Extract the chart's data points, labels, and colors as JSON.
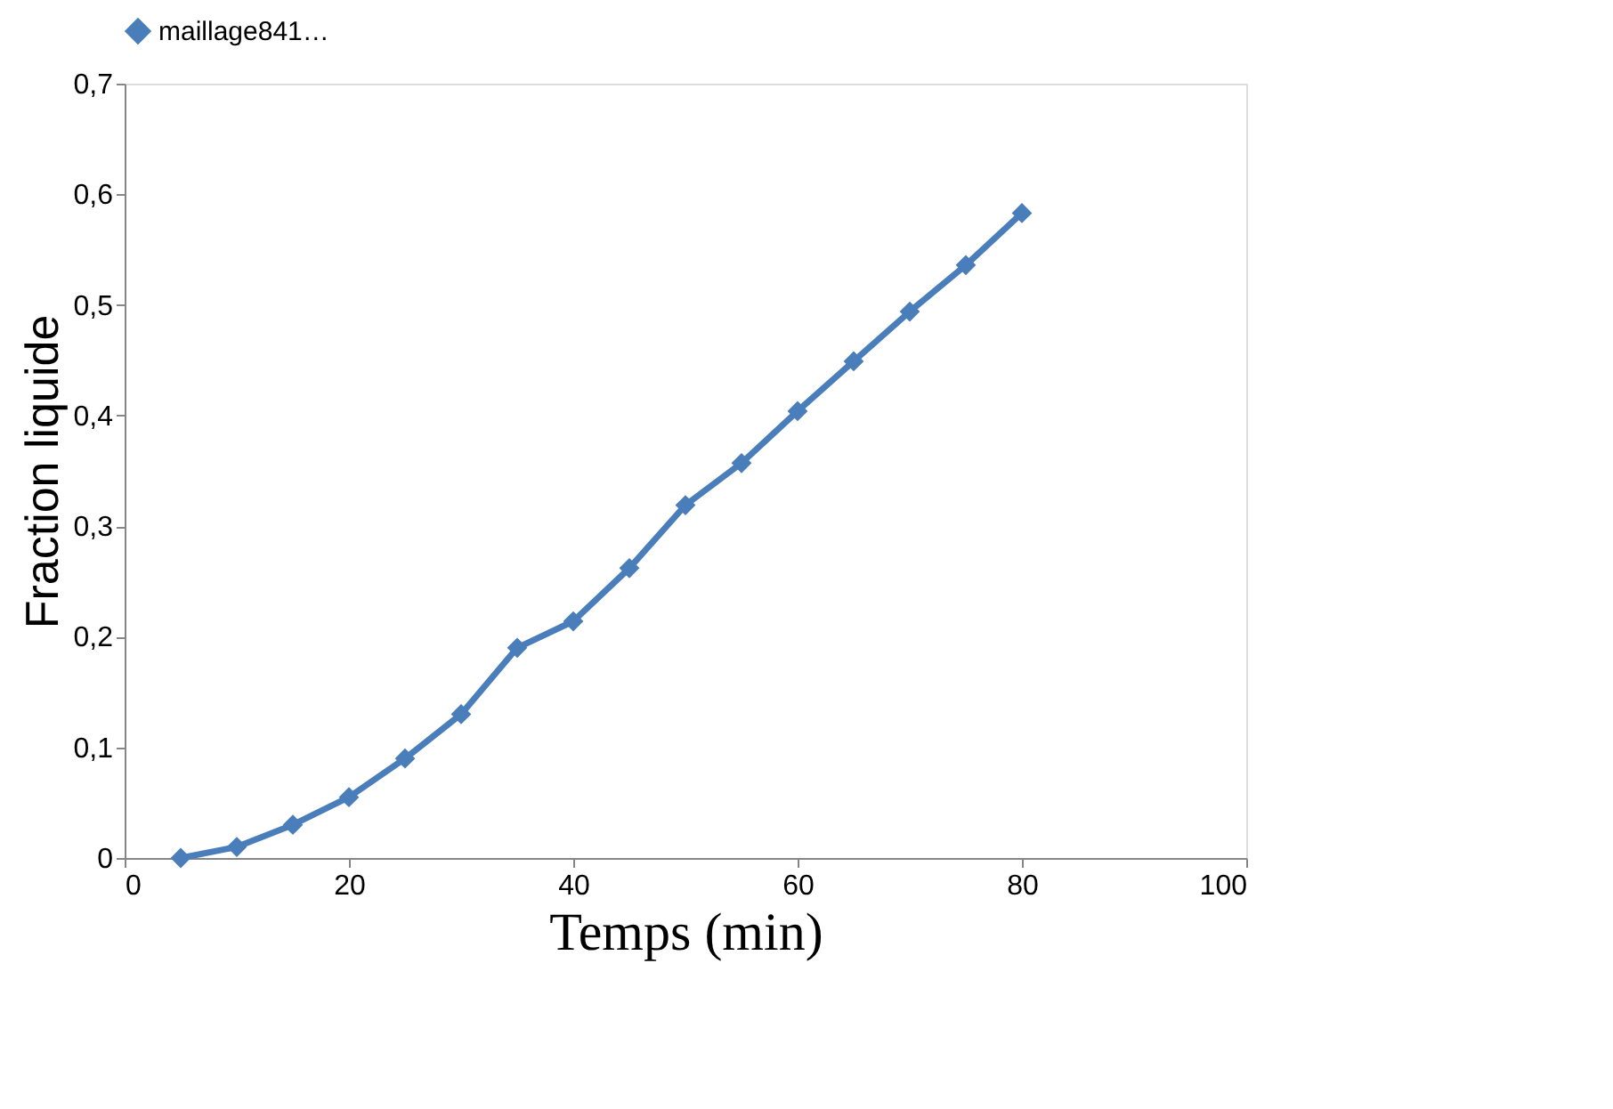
{
  "chart_data": {
    "type": "line",
    "xlabel": "Temps (min)",
    "ylabel": "Fraction liquide",
    "x": [
      5,
      10,
      15,
      20,
      25,
      30,
      35,
      40,
      45,
      50,
      55,
      60,
      65,
      70,
      75,
      80
    ],
    "series": [
      {
        "name": "maillage841…",
        "color": "#4a7ebb",
        "values": [
          0,
          0.01,
          0.03,
          0.055,
          0.09,
          0.13,
          0.19,
          0.214,
          0.262,
          0.319,
          0.357,
          0.404,
          0.449,
          0.494,
          0.536,
          0.583
        ]
      }
    ],
    "xlim": [
      0,
      100
    ],
    "xticks": [
      0,
      20,
      40,
      60,
      80,
      100
    ],
    "ylim": [
      0,
      0.7
    ],
    "yticks": [
      {
        "value": 0,
        "label": "0"
      },
      {
        "value": 0.1,
        "label": "0,1"
      },
      {
        "value": 0.2,
        "label": "0,2"
      },
      {
        "value": 0.3,
        "label": "0,3"
      },
      {
        "value": 0.4,
        "label": "0,4"
      },
      {
        "value": 0.5,
        "label": "0,5"
      },
      {
        "value": 0.6,
        "label": "0,6"
      },
      {
        "value": 0.7,
        "label": "0,7"
      }
    ],
    "grid": false,
    "legend": "top",
    "marker": "diamond",
    "line_style": "solid"
  }
}
